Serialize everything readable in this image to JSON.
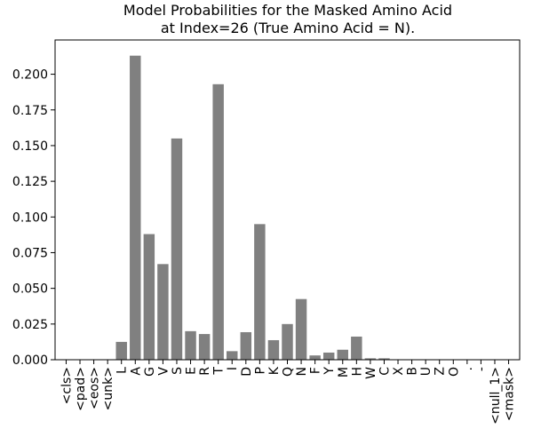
{
  "chart_data": {
    "type": "bar",
    "title": [
      "Model Probabilities for the Masked Amino Acid",
      "at Index=26 (True Amino Acid = N)."
    ],
    "categories": [
      "<cls>",
      "<pad>",
      "<eos>",
      "<unk>",
      "L",
      "A",
      "G",
      "V",
      "S",
      "E",
      "R",
      "T",
      "I",
      "D",
      "P",
      "K",
      "Q",
      "N",
      "F",
      "Y",
      "M",
      "H",
      "W",
      "C",
      "X",
      "B",
      "U",
      "Z",
      "O",
      ".",
      "-",
      "<null_1>",
      "<mask>"
    ],
    "values": [
      0,
      0,
      0,
      0,
      0.0125,
      0.213,
      0.088,
      0.067,
      0.155,
      0.02,
      0.018,
      0.193,
      0.006,
      0.0193,
      0.095,
      0.0137,
      0.025,
      0.0425,
      0.003,
      0.005,
      0.007,
      0.0162,
      0.001,
      0.001,
      0,
      0,
      0,
      0,
      0,
      0,
      0,
      0,
      0
    ],
    "color": "#808080",
    "ylim": [
      0,
      0.224
    ],
    "yticks": [
      {
        "value": 0,
        "label": "0.000"
      },
      0.025,
      {
        "value": 0.05,
        "label": "0.050"
      },
      0.075,
      {
        "value": 0.1,
        "label": "0.100"
      },
      0.125,
      {
        "value": 0.15,
        "label": "0.150"
      },
      0.175,
      {
        "value": 0.2,
        "label": "0.200"
      }
    ]
  }
}
